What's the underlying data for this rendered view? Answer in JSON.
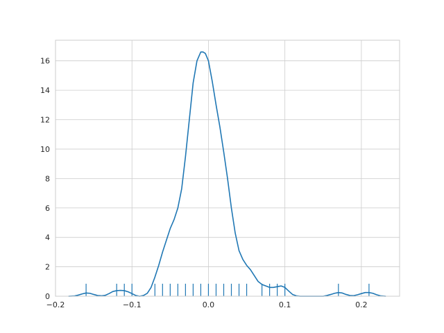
{
  "chart_data": {
    "type": "line",
    "title": "",
    "xlabel": "",
    "ylabel": "",
    "xlim": [
      -0.2,
      0.25
    ],
    "ylim": [
      0,
      17.4
    ],
    "grid": true,
    "legend": "none",
    "xticks": [
      -0.2,
      -0.1,
      0.0,
      0.1,
      0.2
    ],
    "xtick_labels": [
      "−0.2",
      "−0.1",
      "0.0",
      "0.1",
      "0.2"
    ],
    "yticks": [
      0,
      2,
      4,
      6,
      8,
      10,
      12,
      14,
      16
    ],
    "ytick_labels": [
      "0",
      "2",
      "4",
      "6",
      "8",
      "10",
      "12",
      "14",
      "16"
    ],
    "series": [
      {
        "kind": "kde",
        "color": "#1f77b4",
        "x": [
          -0.183,
          -0.175,
          -0.17,
          -0.165,
          -0.16,
          -0.155,
          -0.15,
          -0.145,
          -0.14,
          -0.135,
          -0.13,
          -0.125,
          -0.12,
          -0.115,
          -0.11,
          -0.105,
          -0.1,
          -0.095,
          -0.09,
          -0.085,
          -0.08,
          -0.075,
          -0.07,
          -0.065,
          -0.06,
          -0.055,
          -0.05,
          -0.045,
          -0.04,
          -0.035,
          -0.03,
          -0.025,
          -0.02,
          -0.015,
          -0.01,
          -0.007,
          -0.004,
          0.0,
          0.005,
          0.01,
          0.015,
          0.02,
          0.025,
          0.03,
          0.035,
          0.04,
          0.045,
          0.05,
          0.055,
          0.06,
          0.065,
          0.07,
          0.075,
          0.08,
          0.085,
          0.09,
          0.095,
          0.1,
          0.105,
          0.11,
          0.115,
          0.12,
          0.13,
          0.14,
          0.15,
          0.155,
          0.16,
          0.165,
          0.17,
          0.175,
          0.18,
          0.185,
          0.19,
          0.195,
          0.2,
          0.205,
          0.21,
          0.215,
          0.22,
          0.225,
          0.232
        ],
        "y": [
          0.0,
          0.02,
          0.08,
          0.16,
          0.22,
          0.2,
          0.12,
          0.05,
          0.03,
          0.06,
          0.18,
          0.32,
          0.38,
          0.4,
          0.38,
          0.3,
          0.18,
          0.05,
          0.0,
          0.05,
          0.2,
          0.6,
          1.3,
          2.1,
          3.0,
          3.8,
          4.6,
          5.2,
          6.0,
          7.3,
          9.5,
          12.0,
          14.5,
          16.0,
          16.6,
          16.6,
          16.5,
          16.0,
          14.6,
          13.0,
          11.5,
          9.8,
          8.0,
          6.0,
          4.3,
          3.1,
          2.5,
          2.1,
          1.8,
          1.4,
          1.0,
          0.8,
          0.7,
          0.6,
          0.6,
          0.65,
          0.7,
          0.6,
          0.35,
          0.12,
          0.03,
          0.0,
          0.0,
          0.0,
          0.0,
          0.05,
          0.12,
          0.2,
          0.25,
          0.22,
          0.12,
          0.05,
          0.04,
          0.1,
          0.18,
          0.25,
          0.25,
          0.2,
          0.1,
          0.03,
          0.0
        ]
      },
      {
        "kind": "rug",
        "color": "#1f77b4",
        "height": 0.85,
        "x": [
          -0.16,
          -0.12,
          -0.11,
          -0.1,
          -0.07,
          -0.06,
          -0.05,
          -0.04,
          -0.03,
          -0.02,
          -0.01,
          0.0,
          0.01,
          0.02,
          0.03,
          0.04,
          0.05,
          0.07,
          0.08,
          0.09,
          0.1,
          0.17,
          0.21
        ]
      }
    ]
  }
}
